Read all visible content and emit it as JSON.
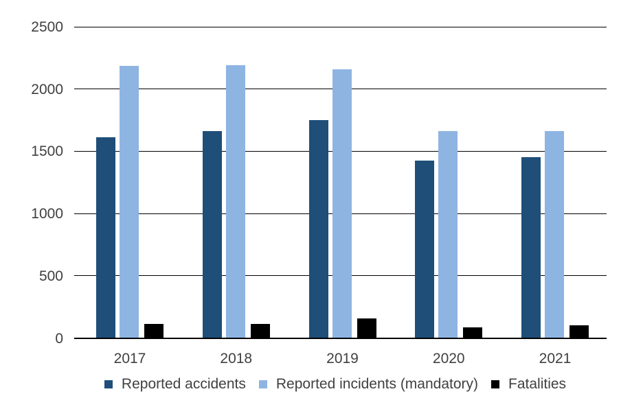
{
  "chart_data": {
    "type": "bar",
    "title": "",
    "xlabel": "",
    "ylabel": "",
    "categories": [
      "2017",
      "2018",
      "2019",
      "2020",
      "2021"
    ],
    "series": [
      {
        "name": "Reported accidents",
        "color": "#1F4E79",
        "values": [
          1615,
          1660,
          1750,
          1425,
          1450
        ]
      },
      {
        "name": "Reported incidents (mandatory)",
        "color": "#8EB4E2",
        "values": [
          2185,
          2190,
          2160,
          1660,
          1660
        ]
      },
      {
        "name": "Fatalities",
        "color": "#000000",
        "values": [
          115,
          115,
          155,
          85,
          100
        ]
      }
    ],
    "ylim": [
      0,
      2500
    ],
    "yticks": [
      0,
      500,
      1000,
      1500,
      2000,
      2500
    ],
    "grid": "horizontal",
    "legend_position": "bottom",
    "colors": {
      "background": "#FFFFFF",
      "gridline": "#000000",
      "text": "#404040"
    }
  }
}
